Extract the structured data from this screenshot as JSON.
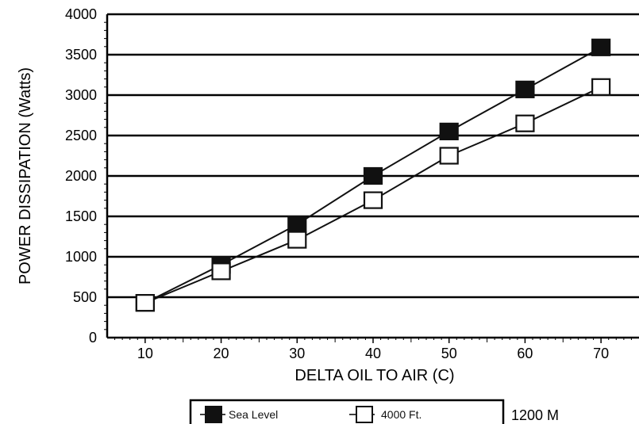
{
  "chart_data": {
    "type": "line",
    "title": "",
    "xlabel": "DELTA OIL TO AIR (C)",
    "ylabel": "POWER DISSIPATION (Watts)",
    "x": [
      10,
      20,
      30,
      40,
      50,
      60,
      70
    ],
    "x_ticks": [
      10,
      20,
      30,
      40,
      50,
      60,
      70
    ],
    "xlim": [
      5,
      75
    ],
    "y_ticks": [
      0,
      500,
      1000,
      1500,
      2000,
      2500,
      3000,
      3500,
      4000
    ],
    "ylim": [
      0,
      4000
    ],
    "grid": "horizontal",
    "legend_position": "bottom",
    "series": [
      {
        "name": "Sea Level",
        "marker": "filled-square",
        "color": "#111111",
        "values": [
          430,
          900,
          1400,
          2000,
          2550,
          3070,
          3590
        ]
      },
      {
        "name": "4000 Ft.",
        "marker": "open-square",
        "color": "#111111",
        "values": [
          430,
          820,
          1210,
          1700,
          2250,
          2650,
          3100
        ]
      }
    ],
    "annotation": "1200 M"
  }
}
